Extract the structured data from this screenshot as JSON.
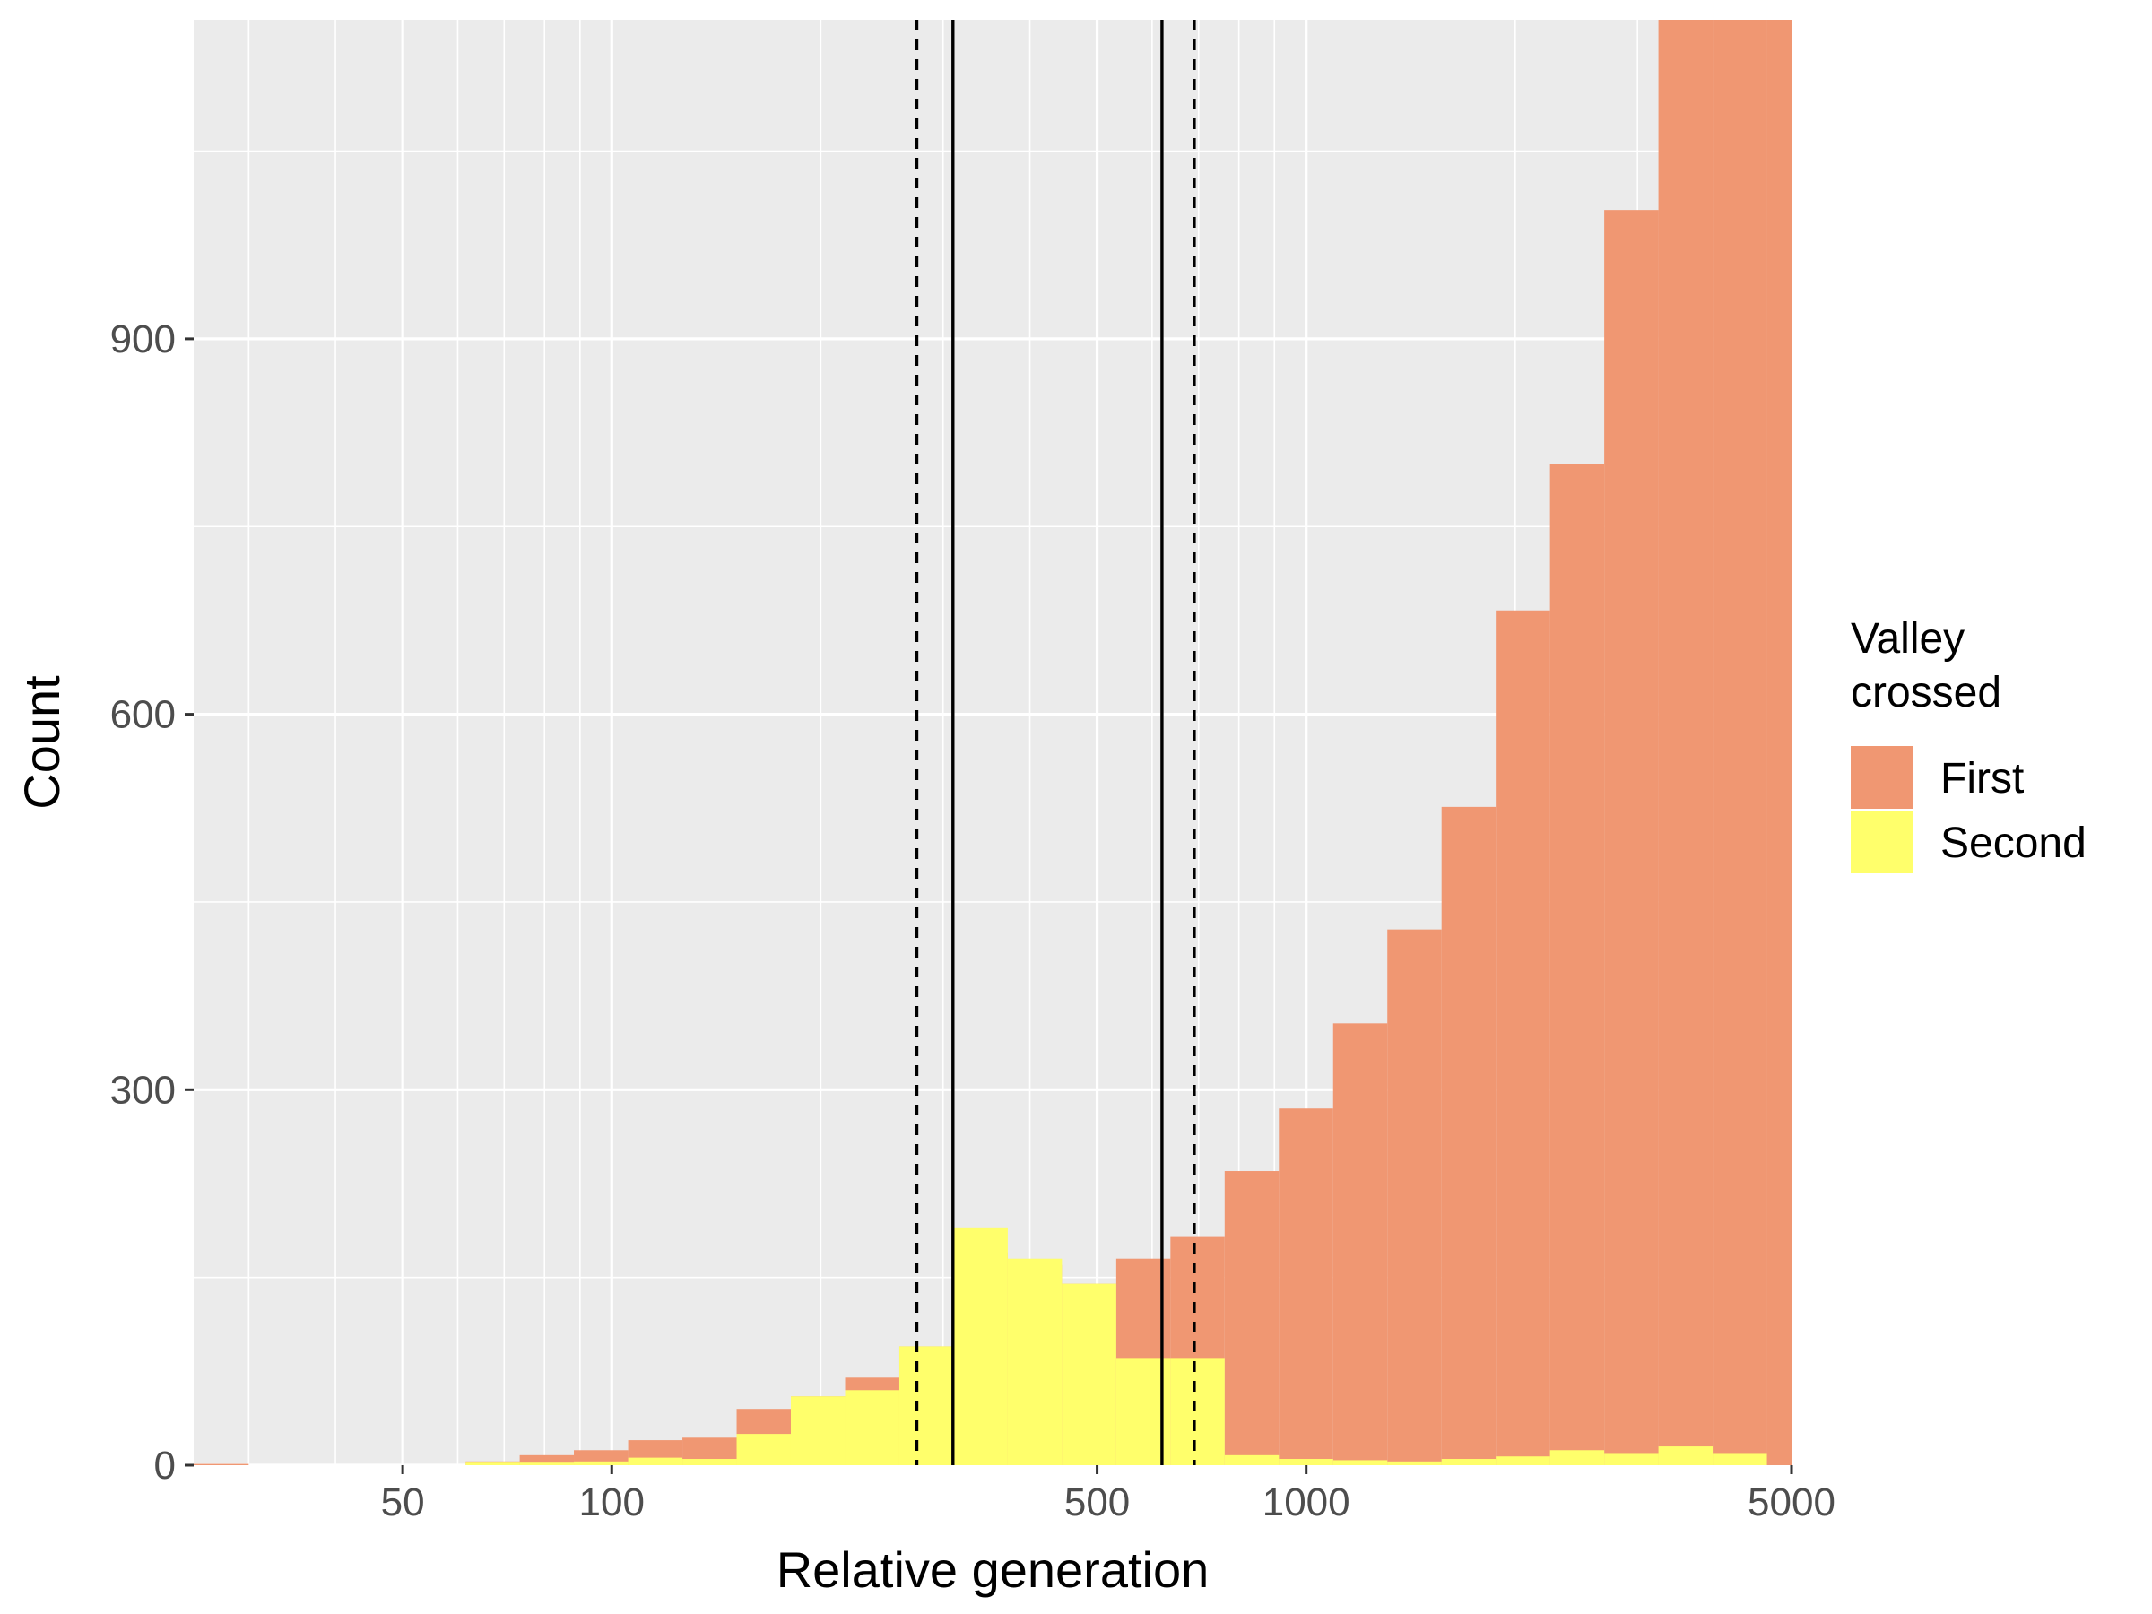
{
  "chart_data": {
    "type": "bar",
    "xlabel": "Relative generation",
    "ylabel": "Count",
    "xscale": "log10",
    "xlim": [
      25,
      5000
    ],
    "ylim": [
      0,
      1155
    ],
    "x_ticks": [
      50,
      100,
      500,
      1000,
      5000
    ],
    "x_tick_labels": [
      "50",
      "100",
      "500",
      "1000",
      "5000"
    ],
    "y_ticks": [
      0,
      300,
      600,
      900
    ],
    "y_tick_labels": [
      "0",
      "300",
      "600",
      "900"
    ],
    "grid": true,
    "legend": {
      "title": [
        "Valley",
        "crossed"
      ],
      "position": "right"
    },
    "bin_edges": [
      25,
      30,
      35.9,
      43,
      51.5,
      61.6,
      73.7,
      88.2,
      105.6,
      126.4,
      151.3,
      181.1,
      216.8,
      259.5,
      310.6,
      371.8,
      445,
      532.7,
      637.6,
      763.2,
      913.5,
      1093.5,
      1308.9,
      1566.7,
      1875.3,
      2244.7,
      2686.9,
      3216.1,
      3849.6,
      4607.9,
      5515.6
    ],
    "series": [
      {
        "name": "First",
        "color": "#F09772",
        "values": [
          1,
          0,
          0,
          0,
          0,
          3,
          8,
          12,
          20,
          22,
          45,
          55,
          70,
          95,
          170,
          160,
          145,
          165,
          183,
          235,
          285,
          353,
          428,
          526,
          683,
          800,
          1003,
          1155,
          1155,
          1155
        ]
      },
      {
        "name": "Second",
        "color": "#FFFF6B",
        "values": [
          0,
          0,
          0,
          0,
          0,
          2,
          2,
          3,
          6,
          5,
          25,
          55,
          60,
          95,
          190,
          165,
          145,
          85,
          85,
          8,
          5,
          4,
          3,
          5,
          7,
          12,
          9,
          15,
          9,
          0
        ]
      }
    ],
    "vlines": [
      {
        "x": 275,
        "style": "dashed"
      },
      {
        "x": 310,
        "style": "solid"
      },
      {
        "x": 620,
        "style": "solid"
      },
      {
        "x": 690,
        "style": "dashed"
      }
    ]
  }
}
